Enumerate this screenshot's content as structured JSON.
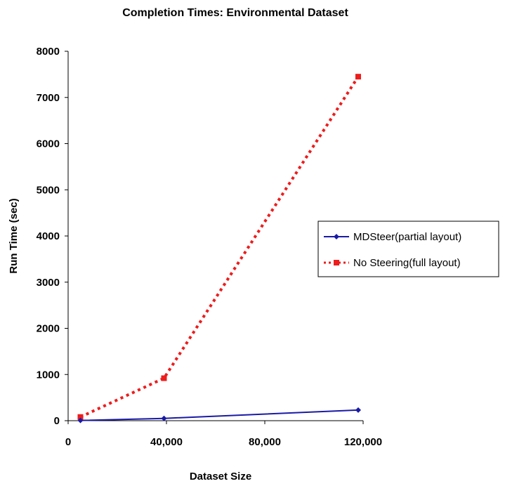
{
  "chart_data": {
    "type": "scatter",
    "title": "Completion Times: Environmental Dataset",
    "xlabel": "Dataset Size",
    "ylabel": "Run Time (sec)",
    "xlim": [
      0,
      120000
    ],
    "ylim": [
      0,
      8000
    ],
    "x_ticks": [
      0,
      40000,
      80000,
      120000
    ],
    "x_tick_labels": [
      "0",
      "40,000",
      "80,000",
      "120,000"
    ],
    "y_ticks": [
      0,
      1000,
      2000,
      3000,
      4000,
      5000,
      6000,
      7000,
      8000
    ],
    "y_tick_labels": [
      "0",
      "1000",
      "2000",
      "3000",
      "4000",
      "5000",
      "6000",
      "7000",
      "8000"
    ],
    "grid": false,
    "legend_position": "right",
    "series": [
      {
        "name": "MDSteer(partial layout)",
        "color": "#1a1aa6",
        "line_style": "solid",
        "marker": "diamond",
        "x": [
          5000,
          39000,
          118000
        ],
        "y": [
          5,
          50,
          230
        ]
      },
      {
        "name": "No Steering(full layout)",
        "color": "#ee1c1c",
        "line_style": "dotted",
        "marker": "square",
        "x": [
          5000,
          39000,
          118000
        ],
        "y": [
          80,
          920,
          7450
        ]
      }
    ]
  }
}
